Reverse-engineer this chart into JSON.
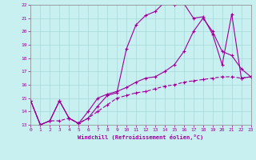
{
  "xlabel": "Windchill (Refroidissement éolien,°C)",
  "xlim": [
    0,
    23
  ],
  "ylim": [
    13,
    22
  ],
  "yticks": [
    13,
    14,
    15,
    16,
    17,
    18,
    19,
    20,
    21,
    22
  ],
  "xticks": [
    0,
    1,
    2,
    3,
    4,
    5,
    6,
    7,
    8,
    9,
    10,
    11,
    12,
    13,
    14,
    15,
    16,
    17,
    18,
    19,
    20,
    21,
    22,
    23
  ],
  "bg_color": "#c8f0f0",
  "line_color": "#990099",
  "grid_color": "#a8d8d8",
  "line1_x": [
    0,
    1,
    2,
    3,
    4,
    5,
    6,
    7,
    8,
    9,
    10,
    11,
    12,
    13,
    14,
    15,
    16,
    17,
    18,
    19,
    20,
    21,
    22,
    23
  ],
  "line1_y": [
    14.8,
    13.0,
    13.3,
    14.8,
    13.5,
    13.1,
    13.5,
    14.4,
    15.2,
    15.4,
    18.7,
    20.5,
    21.2,
    21.5,
    22.2,
    22.0,
    22.1,
    21.0,
    21.1,
    19.8,
    17.5,
    21.3,
    16.5,
    16.6
  ],
  "line2_x": [
    0,
    1,
    2,
    3,
    4,
    5,
    6,
    7,
    8,
    9,
    10,
    11,
    12,
    13,
    14,
    15,
    16,
    17,
    18,
    19,
    20,
    21,
    22,
    23
  ],
  "line2_y": [
    14.8,
    13.0,
    13.3,
    14.8,
    13.5,
    13.1,
    14.0,
    15.0,
    15.3,
    15.5,
    15.8,
    16.2,
    16.5,
    16.6,
    17.0,
    17.5,
    18.5,
    20.0,
    21.0,
    20.0,
    18.5,
    18.2,
    17.2,
    16.6
  ],
  "line3_x": [
    0,
    1,
    2,
    3,
    4,
    5,
    6,
    7,
    8,
    9,
    10,
    11,
    12,
    13,
    14,
    15,
    16,
    17,
    18,
    19,
    20,
    21,
    22,
    23
  ],
  "line3_y": [
    14.8,
    13.0,
    13.3,
    13.3,
    13.5,
    13.1,
    13.5,
    14.0,
    14.5,
    15.0,
    15.2,
    15.4,
    15.5,
    15.7,
    15.9,
    16.0,
    16.2,
    16.3,
    16.4,
    16.5,
    16.6,
    16.6,
    16.5,
    16.6
  ]
}
